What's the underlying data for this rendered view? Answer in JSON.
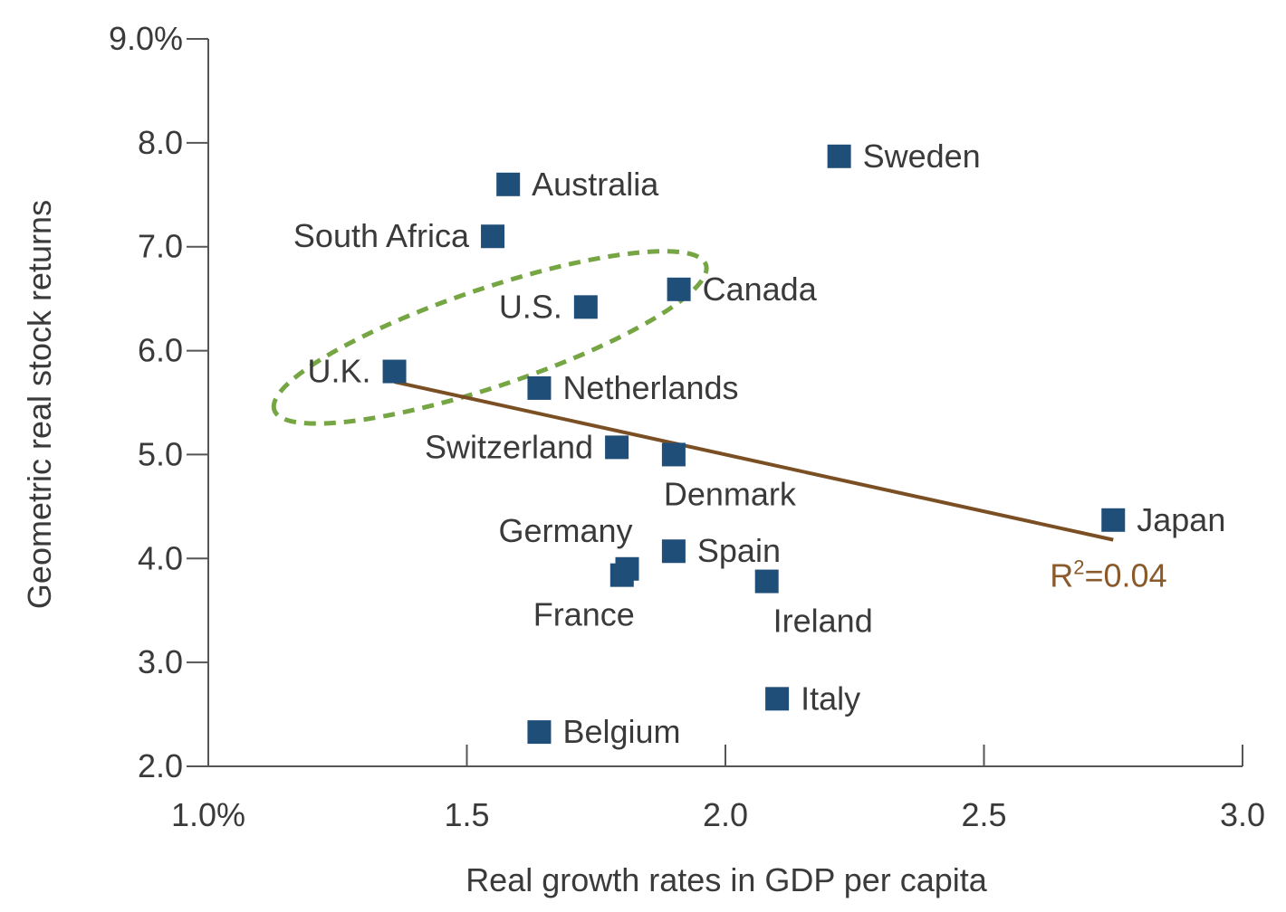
{
  "chart_data": {
    "type": "scatter",
    "title": "",
    "xlabel": "Real growth rates in GDP per capita",
    "ylabel": "Geometric real stock returns",
    "xlim": [
      1.0,
      3.0
    ],
    "ylim": [
      2.0,
      9.0
    ],
    "x_ticks": [
      {
        "value": 1.0,
        "label": "1.0%"
      },
      {
        "value": 1.5,
        "label": "1.5"
      },
      {
        "value": 2.0,
        "label": "2.0"
      },
      {
        "value": 2.5,
        "label": "2.5"
      },
      {
        "value": 3.0,
        "label": "3.0"
      }
    ],
    "y_ticks": [
      {
        "value": 2.0,
        "label": "2.0"
      },
      {
        "value": 3.0,
        "label": "3.0"
      },
      {
        "value": 4.0,
        "label": "4.0"
      },
      {
        "value": 5.0,
        "label": "5.0"
      },
      {
        "value": 6.0,
        "label": "6.0"
      },
      {
        "value": 7.0,
        "label": "7.0"
      },
      {
        "value": 8.0,
        "label": "8.0"
      },
      {
        "value": 9.0,
        "label": "9.0%"
      }
    ],
    "grid": false,
    "marker_color": "#1f4e79",
    "points": [
      {
        "name": "Sweden",
        "x": 2.22,
        "y": 7.87,
        "label_pos": "right"
      },
      {
        "name": "Australia",
        "x": 1.58,
        "y": 7.6,
        "label_pos": "right"
      },
      {
        "name": "South Africa",
        "x": 1.55,
        "y": 7.1,
        "label_pos": "left"
      },
      {
        "name": "Canada",
        "x": 1.91,
        "y": 6.59,
        "label_pos": "right"
      },
      {
        "name": "U.S.",
        "x": 1.73,
        "y": 6.42,
        "label_pos": "left"
      },
      {
        "name": "U.K.",
        "x": 1.36,
        "y": 5.8,
        "label_pos": "left"
      },
      {
        "name": "Netherlands",
        "x": 1.64,
        "y": 5.64,
        "label_pos": "right"
      },
      {
        "name": "Switzerland",
        "x": 1.79,
        "y": 5.07,
        "label_pos": "left"
      },
      {
        "name": "Denmark",
        "x": 1.9,
        "y": 5.0,
        "label_pos": "below"
      },
      {
        "name": "Japan",
        "x": 2.75,
        "y": 4.37,
        "label_pos": "right"
      },
      {
        "name": "Germany",
        "x": 1.81,
        "y": 3.9,
        "label_pos": "above"
      },
      {
        "name": "France",
        "x": 1.8,
        "y": 3.84,
        "label_pos": "below"
      },
      {
        "name": "Spain",
        "x": 1.9,
        "y": 4.07,
        "label_pos": "right"
      },
      {
        "name": "Ireland",
        "x": 2.08,
        "y": 3.78,
        "label_pos": "below"
      },
      {
        "name": "Italy",
        "x": 2.1,
        "y": 2.65,
        "label_pos": "right"
      },
      {
        "name": "Belgium",
        "x": 1.64,
        "y": 2.33,
        "label_pos": "right"
      }
    ],
    "trendline": {
      "x": [
        1.36,
        2.75
      ],
      "y": [
        5.7,
        4.18
      ],
      "color": "#7b4f24",
      "label_base": "R",
      "label_sup": "2",
      "label_rest": "=0.04",
      "label_color": "#8b5a2b"
    },
    "highlight_ellipse": {
      "members": [
        "U.K.",
        "U.S."
      ],
      "color": "#76a543",
      "style": "dashed"
    }
  }
}
